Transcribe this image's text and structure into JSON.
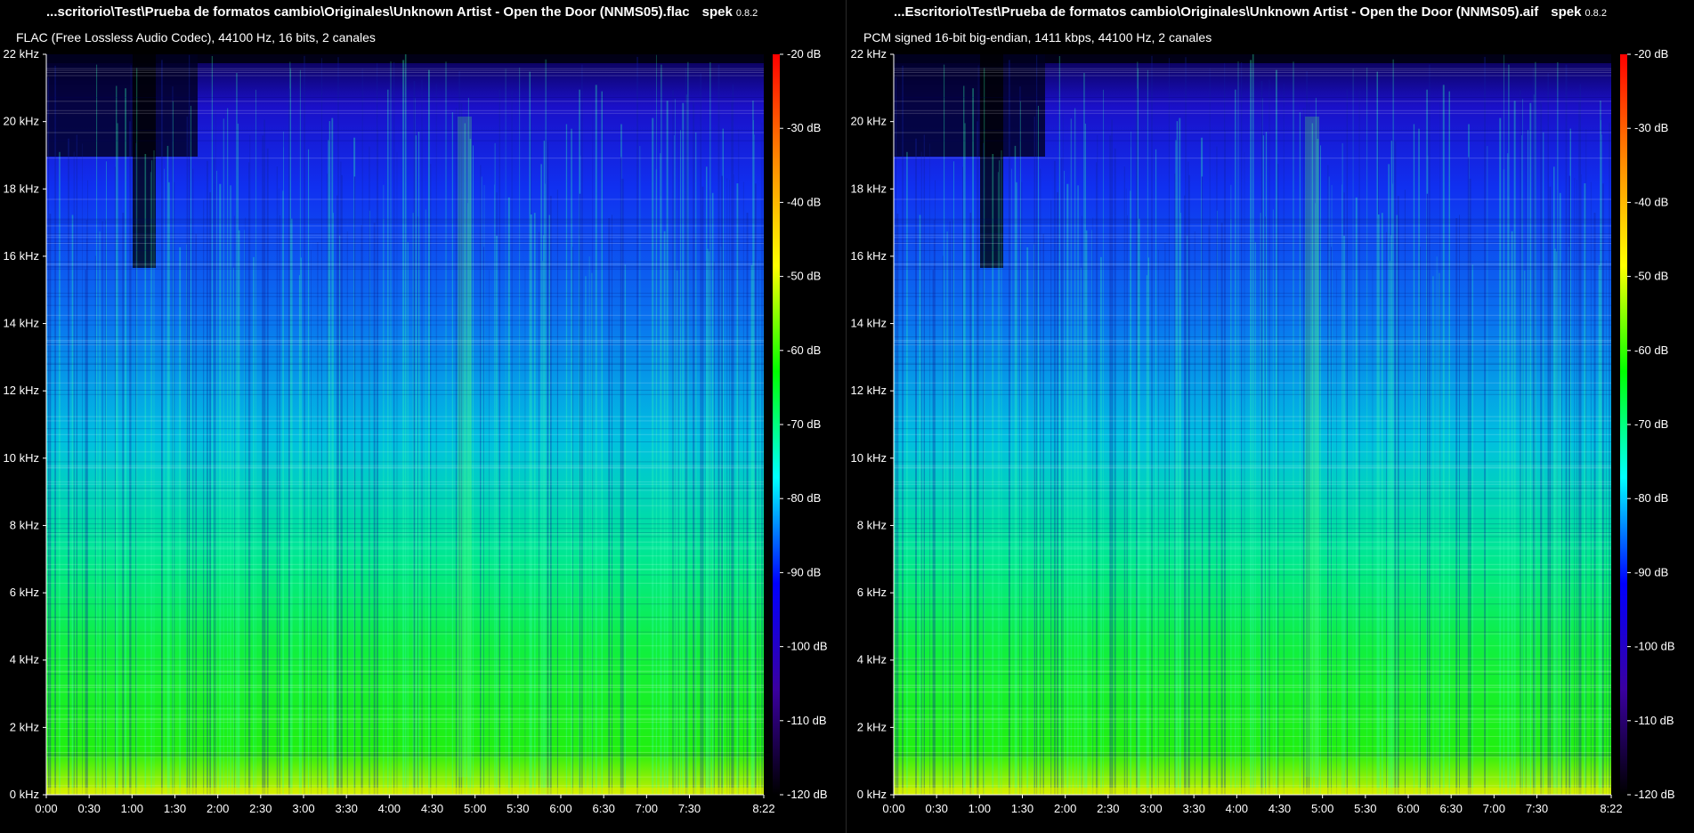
{
  "panels": [
    {
      "id": "left",
      "file_title": "...scritorio\\Test\\Prueba de formatos cambio\\Originales\\Unknown Artist  - Open the Door (NNMS05).flac",
      "app_name": "spek",
      "app_version": "0.8.2",
      "format_info": "FLAC (Free Lossless Audio Codec), 44100 Hz, 16 bits, 2 canales"
    },
    {
      "id": "right",
      "file_title": "...Escritorio\\Test\\Prueba de formatos cambio\\Originales\\Unknown Artist  - Open the Door (NNMS05).aif",
      "app_name": "spek",
      "app_version": "0.8.2",
      "format_info": "PCM signed 16-bit big-endian, 1411 kbps, 44100 Hz, 2 canales"
    }
  ],
  "chart_data": {
    "type": "heatmap",
    "x_ticks": [
      "0:00",
      "0:30",
      "1:00",
      "1:30",
      "2:00",
      "2:30",
      "3:00",
      "3:30",
      "4:00",
      "4:30",
      "5:00",
      "5:30",
      "6:00",
      "6:30",
      "7:00",
      "7:30",
      "8:22"
    ],
    "x_tick_seconds": [
      0,
      30,
      60,
      90,
      120,
      150,
      180,
      210,
      240,
      270,
      300,
      330,
      360,
      390,
      420,
      450,
      502
    ],
    "x_range_seconds": [
      0,
      502
    ],
    "y_ticks": [
      "22 kHz",
      "20 kHz",
      "18 kHz",
      "16 kHz",
      "14 kHz",
      "12 kHz",
      "10 kHz",
      "8 kHz",
      "6 kHz",
      "4 kHz",
      "2 kHz",
      "0 kHz"
    ],
    "y_tick_khz": [
      22,
      20,
      18,
      16,
      14,
      12,
      10,
      8,
      6,
      4,
      2,
      0
    ],
    "y_range_khz": [
      0,
      22
    ],
    "colorbar_ticks": [
      "-20 dB",
      "-30 dB",
      "-40 dB",
      "-50 dB",
      "-60 dB",
      "-70 dB",
      "-80 dB",
      "-90 dB",
      "-100 dB",
      "-110 dB",
      "-120 dB"
    ],
    "colorbar_db": [
      -20,
      -30,
      -40,
      -50,
      -60,
      -70,
      -80,
      -90,
      -100,
      -110,
      -120
    ],
    "colorbar_range_db": [
      -120,
      -20
    ],
    "colors": [
      "#ff0000",
      "#ff8800",
      "#ffff00",
      "#00ff00",
      "#00ffff",
      "#0000ff",
      "#3a00a0",
      "#000000"
    ]
  }
}
